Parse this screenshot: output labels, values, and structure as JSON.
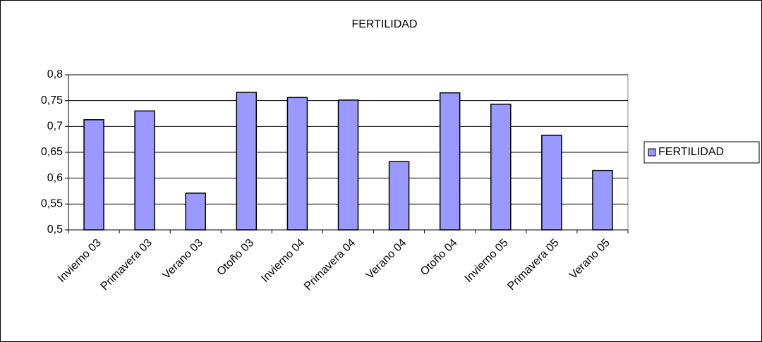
{
  "chart_data": {
    "type": "bar",
    "title": "FERTILIDAD",
    "categories": [
      "Invierno 03",
      "Primavera 03",
      "Verano 03",
      "Otoño 03",
      "Invierno 04",
      "Primavera 04",
      "Verano 04",
      "Otoño 04",
      "Invierno 05",
      "Primavera 05",
      "Verano 05"
    ],
    "series": [
      {
        "name": "FERTILIDAD",
        "color": "#9999ff",
        "values": [
          0.713,
          0.73,
          0.571,
          0.766,
          0.756,
          0.751,
          0.632,
          0.765,
          0.743,
          0.683,
          0.615
        ]
      }
    ],
    "ylim": [
      0.5,
      0.8
    ],
    "yticks": [
      {
        "value": 0.5,
        "label": "0,5"
      },
      {
        "value": 0.55,
        "label": "0,55"
      },
      {
        "value": 0.6,
        "label": "0,6"
      },
      {
        "value": 0.65,
        "label": "0,65"
      },
      {
        "value": 0.7,
        "label": "0,7"
      },
      {
        "value": 0.75,
        "label": "0,75"
      },
      {
        "value": 0.8,
        "label": "0,8"
      }
    ],
    "grid": true,
    "legend": "right"
  }
}
